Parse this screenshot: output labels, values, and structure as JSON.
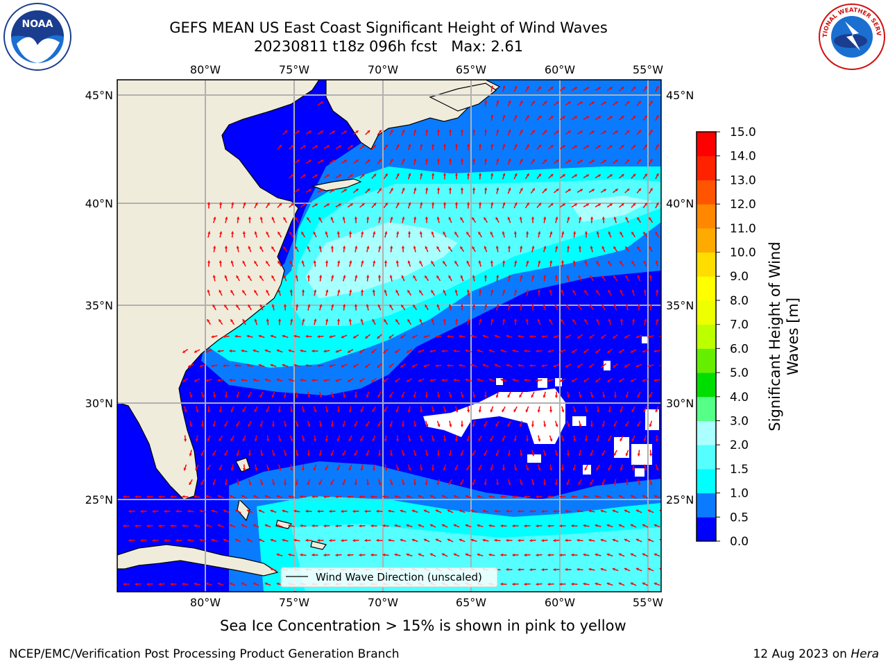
{
  "header": {
    "title_line1": "GEFS MEAN US East Coast Significant Height of Wind Waves",
    "title_line2": "20230811 t18z 096h fcst   Max: 2.61"
  },
  "logos": {
    "left": "noaa-logo",
    "left_text": "NOAA",
    "right": "nws-logo",
    "right_text": "NATIONAL WEATHER SERVICE"
  },
  "map": {
    "lon_labels": [
      "80°W",
      "75°W",
      "70°W",
      "65°W",
      "60°W",
      "55°W"
    ],
    "lat_labels": [
      "45°N",
      "40°N",
      "35°N",
      "30°N",
      "25°N"
    ],
    "legend_label": "Wind Wave Direction (unscaled)",
    "arrow_color": "#ff0000",
    "land_color": "#efecdc"
  },
  "colorbar": {
    "title_line1": "Significant Height of Wind",
    "title_line2": "Waves [m]",
    "ticks": [
      "0.0",
      "0.5",
      "1.0",
      "1.5",
      "2.0",
      "3.0",
      "4.0",
      "5.0",
      "6.0",
      "7.0",
      "8.0",
      "9.0",
      "10.0",
      "11.0",
      "12.0",
      "13.0",
      "14.0",
      "15.0"
    ],
    "colors": [
      "#0000ff",
      "#0a7bff",
      "#00ffff",
      "#55ffff",
      "#aaffff",
      "#55ff88",
      "#00dd00",
      "#66ee00",
      "#bbff00",
      "#eeff00",
      "#ffff00",
      "#ffdd00",
      "#ffaa00",
      "#ff8800",
      "#ff5500",
      "#ff2200",
      "#ff0000"
    ]
  },
  "notes": {
    "sea_ice": "Sea Ice Concentration > 15% is shown in pink to yellow"
  },
  "footer": {
    "left": "NCEP/EMC/Verification Post Processing Product Generation Branch",
    "date": "12 Aug 2023 on ",
    "host": "Hera"
  }
}
